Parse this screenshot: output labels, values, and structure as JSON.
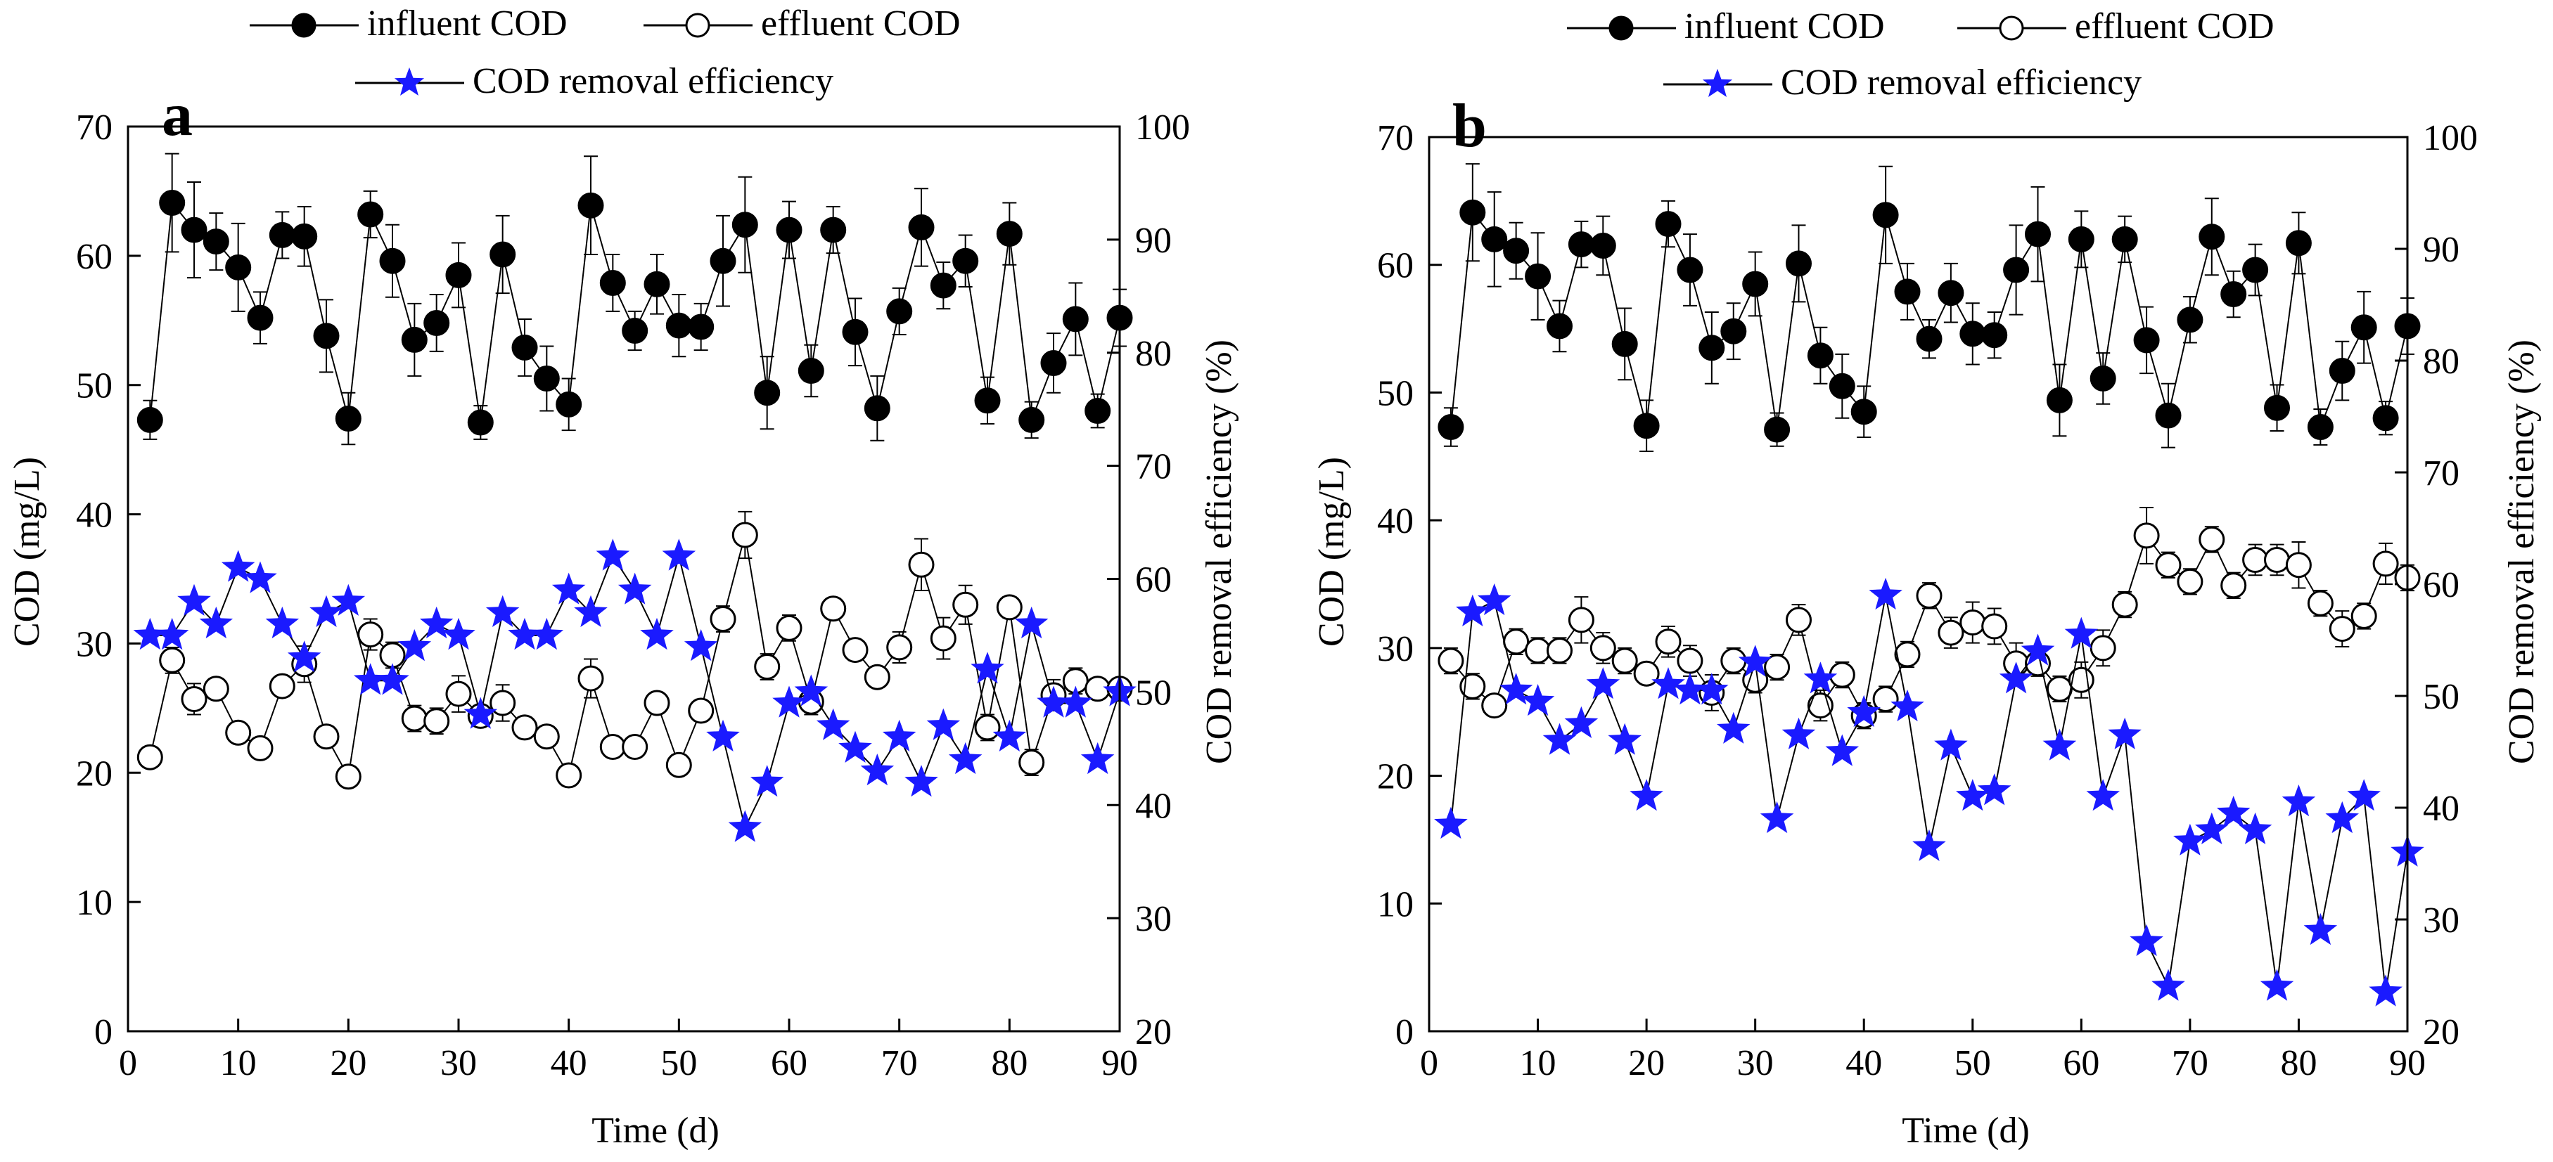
{
  "chart_data": [
    {
      "type": "line",
      "panel_label": "a",
      "xlabel": "Time (d)",
      "ylabel_left": "COD (mg/L)",
      "ylabel_right": "COD removal efficiency (%)",
      "xlim": [
        0,
        90
      ],
      "ylim_left": [
        0,
        70
      ],
      "ylim_right": [
        20,
        100
      ],
      "x_ticks": [
        "0",
        "10",
        "20",
        "30",
        "40",
        "50",
        "60",
        "70",
        "80",
        "90"
      ],
      "yl_ticks": [
        "0",
        "10",
        "20",
        "30",
        "40",
        "50",
        "60",
        "70"
      ],
      "yr_ticks": [
        "20",
        "30",
        "40",
        "50",
        "60",
        "70",
        "80",
        "90",
        "100"
      ],
      "x": [
        2,
        4,
        6,
        8,
        10,
        12,
        14,
        16,
        18,
        20,
        22,
        24,
        26,
        28,
        30,
        32,
        34,
        36,
        38,
        40,
        42,
        44,
        46,
        48,
        50,
        52,
        54,
        56,
        58,
        60,
        62,
        64,
        66,
        68,
        70,
        72,
        74,
        76,
        78,
        80,
        82,
        84,
        86,
        88,
        90
      ],
      "series": [
        {
          "name": "influent COD",
          "axis": "left",
          "values": [
            47.3,
            64.1,
            62.0,
            61.1,
            59.1,
            55.2,
            61.6,
            61.5,
            53.8,
            47.4,
            63.2,
            59.6,
            53.5,
            54.8,
            58.5,
            47.1,
            60.1,
            52.9,
            50.5,
            48.5,
            63.9,
            57.9,
            54.2,
            57.8,
            54.6,
            54.5,
            59.6,
            62.4,
            49.4,
            62.0,
            51.1,
            62.0,
            54.1,
            48.2,
            55.7,
            62.2,
            57.7,
            59.6,
            48.8,
            61.7,
            47.3,
            51.7,
            55.1,
            48.0,
            55.2
          ],
          "errors": [
            1.5,
            3.8,
            3.7,
            2.2,
            3.4,
            2.0,
            1.8,
            2.3,
            2.8,
            2.0,
            1.8,
            2.8,
            2.8,
            2.2,
            2.5,
            1.3,
            3.0,
            2.2,
            2.5,
            2.0,
            3.8,
            2.2,
            1.5,
            2.3,
            2.4,
            1.8,
            3.5,
            3.7,
            2.8,
            2.2,
            2.0,
            1.8,
            2.6,
            2.5,
            1.8,
            3.0,
            1.8,
            2.0,
            1.8,
            2.4,
            1.4,
            2.3,
            2.8,
            1.3,
            2.2
          ]
        },
        {
          "name": "effluent COD",
          "axis": "left",
          "values": [
            21.2,
            28.7,
            25.7,
            26.5,
            23.1,
            21.9,
            26.7,
            28.4,
            22.8,
            19.7,
            30.7,
            29.1,
            24.2,
            24.0,
            26.1,
            24.4,
            25.4,
            23.5,
            22.8,
            19.8,
            27.3,
            22.0,
            22.0,
            25.4,
            20.6,
            24.8,
            31.9,
            38.4,
            28.2,
            31.2,
            25.5,
            32.7,
            29.5,
            27.4,
            29.7,
            36.1,
            30.4,
            33.0,
            23.5,
            32.8,
            20.8,
            26.0,
            27.1,
            26.5,
            26.5
          ],
          "errors": [
            0.6,
            1.0,
            1.2,
            0.6,
            0.6,
            0.5,
            0.8,
            1.4,
            0.6,
            0.6,
            1.2,
            1.0,
            1.0,
            1.0,
            1.4,
            0.8,
            1.4,
            0.7,
            0.7,
            0.5,
            1.5,
            0.6,
            0.5,
            0.8,
            0.8,
            0.8,
            1.0,
            1.8,
            1.0,
            1.0,
            1.0,
            0.8,
            0.8,
            0.8,
            1.2,
            2.0,
            1.6,
            1.5,
            1.0,
            0.8,
            1.0,
            1.2,
            1.0,
            0.8,
            0.8
          ]
        },
        {
          "name": "COD removal efficiency",
          "axis": "right",
          "values": [
            55,
            55,
            58,
            56,
            61,
            60,
            56,
            53,
            57,
            58,
            51,
            51,
            54,
            56,
            55,
            48,
            57,
            55,
            55,
            59,
            57,
            62,
            59,
            55,
            62,
            54,
            46,
            38,
            42,
            49,
            50,
            47,
            45,
            43,
            46,
            42,
            47,
            44,
            52,
            46,
            56,
            49,
            49,
            44,
            50
          ]
        }
      ]
    },
    {
      "type": "line",
      "panel_label": "b",
      "xlabel": "Time (d)",
      "ylabel_left": "COD (mg/L)",
      "ylabel_right": "COD removal efficiency (%)",
      "xlim": [
        0,
        90
      ],
      "ylim_left": [
        0,
        70
      ],
      "ylim_right": [
        20,
        100
      ],
      "x_ticks": [
        "0",
        "10",
        "20",
        "30",
        "40",
        "50",
        "60",
        "70",
        "80",
        "90"
      ],
      "yl_ticks": [
        "0",
        "10",
        "20",
        "30",
        "40",
        "50",
        "60",
        "70"
      ],
      "yr_ticks": [
        "20",
        "30",
        "40",
        "50",
        "60",
        "70",
        "80",
        "90",
        "100"
      ],
      "x": [
        2,
        4,
        6,
        8,
        10,
        12,
        14,
        16,
        18,
        20,
        22,
        24,
        26,
        28,
        30,
        32,
        34,
        36,
        38,
        40,
        42,
        44,
        46,
        48,
        50,
        52,
        54,
        56,
        58,
        60,
        62,
        64,
        66,
        68,
        70,
        72,
        74,
        76,
        78,
        80,
        82,
        84,
        86,
        88,
        90
      ],
      "series": [
        {
          "name": "influent COD",
          "axis": "left",
          "values": [
            47.3,
            64.1,
            62.0,
            61.1,
            59.1,
            55.2,
            61.6,
            61.5,
            53.8,
            47.4,
            63.2,
            59.6,
            53.5,
            54.8,
            58.5,
            47.1,
            60.1,
            52.9,
            50.5,
            48.5,
            63.9,
            57.9,
            54.2,
            57.8,
            54.6,
            54.5,
            59.6,
            62.4,
            49.4,
            62.0,
            51.1,
            62.0,
            54.1,
            48.2,
            55.7,
            62.2,
            57.7,
            59.6,
            48.8,
            61.7,
            47.3,
            51.7,
            55.1,
            48.0,
            55.2
          ],
          "errors": [
            1.5,
            3.8,
            3.7,
            2.2,
            3.4,
            2.0,
            1.8,
            2.3,
            2.8,
            2.0,
            1.8,
            2.8,
            2.8,
            2.2,
            2.5,
            1.3,
            3.0,
            2.2,
            2.5,
            2.0,
            3.8,
            2.2,
            1.5,
            2.3,
            2.4,
            1.8,
            3.5,
            3.7,
            2.8,
            2.2,
            2.0,
            1.8,
            2.6,
            2.5,
            1.8,
            3.0,
            1.8,
            2.0,
            1.8,
            2.4,
            1.4,
            2.3,
            2.8,
            1.3,
            2.2
          ]
        },
        {
          "name": "effluent COD",
          "axis": "left",
          "values": [
            29.0,
            27.0,
            25.5,
            30.5,
            29.8,
            29.8,
            32.2,
            30.0,
            29.0,
            28.0,
            30.5,
            29.0,
            26.5,
            29.0,
            27.5,
            28.5,
            32.2,
            25.5,
            27.9,
            24.7,
            26.0,
            29.5,
            34.1,
            31.2,
            32.0,
            31.7,
            28.8,
            28.8,
            26.8,
            27.5,
            30.0,
            33.4,
            38.8,
            36.5,
            35.2,
            38.5,
            34.9,
            36.9,
            36.9,
            36.5,
            33.5,
            31.5,
            32.5,
            36.6,
            35.5
          ],
          "errors": [
            1.0,
            1.0,
            0.6,
            1.0,
            1.0,
            1.0,
            1.8,
            1.2,
            1.0,
            0.6,
            1.2,
            1.2,
            1.4,
            1.0,
            1.0,
            1.0,
            1.2,
            1.2,
            1.0,
            1.0,
            1.0,
            1.0,
            1.0,
            1.2,
            1.6,
            1.4,
            1.6,
            1.0,
            1.0,
            1.4,
            1.4,
            1.0,
            2.2,
            1.0,
            1.0,
            1.0,
            1.0,
            1.2,
            1.2,
            1.8,
            1.0,
            1.4,
            1.0,
            1.6,
            1.0
          ]
        },
        {
          "name": "COD removal efficiency",
          "axis": "right",
          "values": [
            38.5,
            57.5,
            58.5,
            50.5,
            49.5,
            46,
            47.5,
            51,
            46,
            41,
            51,
            50.5,
            50.5,
            47,
            53,
            39,
            46.5,
            51.5,
            45,
            48.5,
            59,
            49,
            36.5,
            45.5,
            41,
            41.5,
            51.5,
            54,
            45.5,
            55.5,
            41,
            46.5,
            28,
            24,
            37,
            38,
            39.5,
            38,
            24,
            40.5,
            29,
            39,
            41,
            23.5,
            36
          ]
        }
      ]
    }
  ],
  "legend": {
    "influent": "influent COD",
    "effluent": "effluent COD",
    "removal": "COD removal efficiency"
  },
  "colors": {
    "axis": "#000000",
    "influent_fill": "#000000",
    "effluent_fill": "#ffffff",
    "star": "#1a1aff"
  }
}
